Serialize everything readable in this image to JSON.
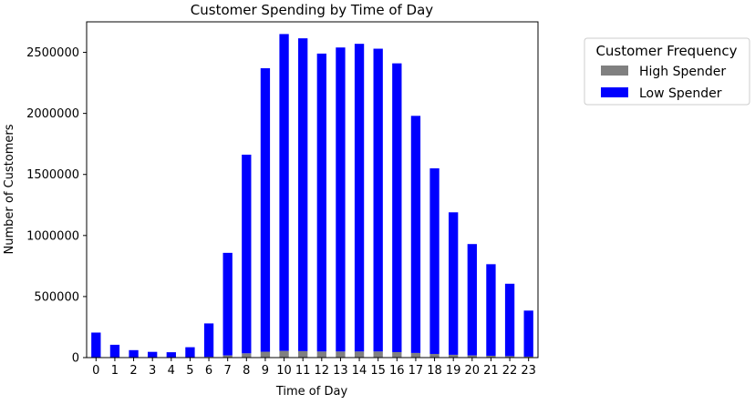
{
  "chart_data": {
    "type": "bar",
    "stacked": true,
    "title": "Customer Spending by Time of Day",
    "xlabel": "Time of Day",
    "ylabel": "Number of Customers",
    "categories": [
      "0",
      "1",
      "2",
      "3",
      "4",
      "5",
      "6",
      "7",
      "8",
      "9",
      "10",
      "11",
      "12",
      "13",
      "14",
      "15",
      "16",
      "17",
      "18",
      "19",
      "20",
      "21",
      "22",
      "23"
    ],
    "ylim": [
      0,
      2750000
    ],
    "yticks": [
      0,
      500000,
      1000000,
      1500000,
      2000000,
      2500000
    ],
    "ytick_labels": [
      "0",
      "500000",
      "1000000",
      "1500000",
      "2000000",
      "2500000"
    ],
    "grid": false,
    "legend": {
      "title": "Customer Frequency",
      "placement": "outside-right"
    },
    "series": [
      {
        "name": "High Spender",
        "color": "#808080",
        "values": [
          3000,
          2000,
          1000,
          1000,
          1000,
          2000,
          6000,
          18000,
          35000,
          48000,
          55000,
          53000,
          50000,
          50000,
          50000,
          50000,
          45000,
          38000,
          30000,
          23000,
          18000,
          15000,
          12000,
          8000
        ]
      },
      {
        "name": "Low Spender",
        "color": "#0000ff",
        "values": [
          202000,
          103000,
          60000,
          46000,
          43000,
          83000,
          274000,
          840000,
          1627000,
          2322000,
          2595000,
          2562000,
          2440000,
          2490000,
          2520000,
          2480000,
          2365000,
          1942000,
          1520000,
          1167000,
          912000,
          750000,
          593000,
          377000
        ]
      }
    ]
  }
}
